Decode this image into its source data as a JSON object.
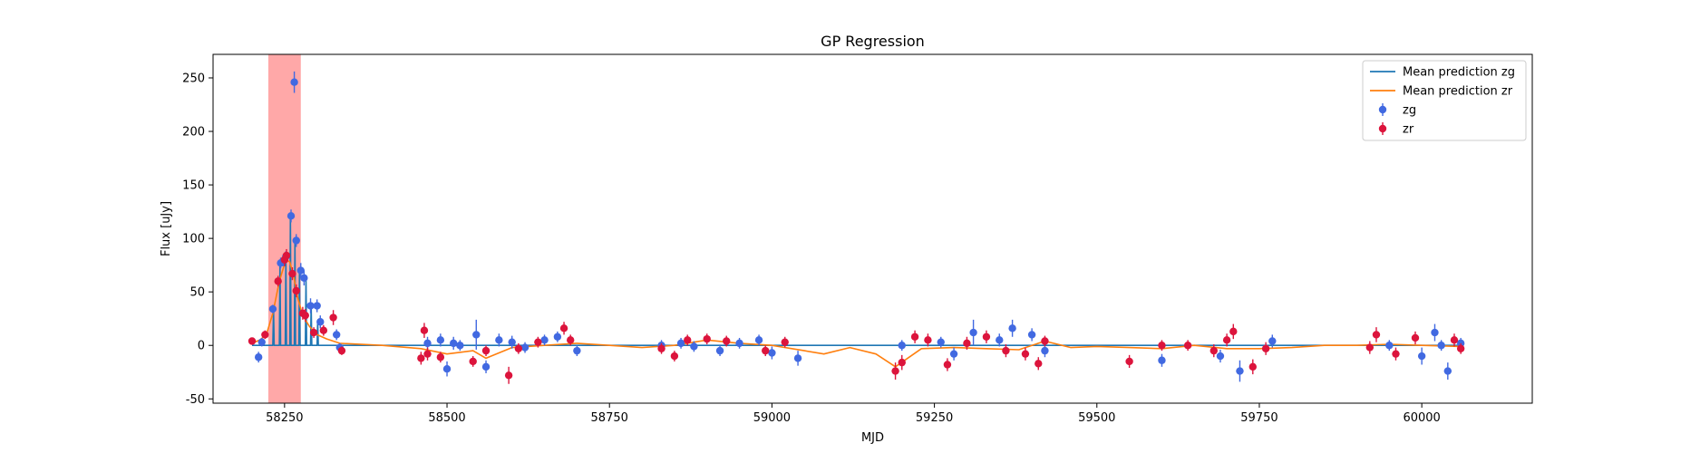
{
  "chart_data": {
    "type": "scatter",
    "title": "GP Regression",
    "xlabel": "MJD",
    "ylabel": "Flux [uJy]",
    "xlim": [
      58140,
      60170
    ],
    "ylim": [
      -54,
      272
    ],
    "x_ticks": [
      58250,
      58500,
      58750,
      59000,
      59250,
      59500,
      59750,
      60000
    ],
    "y_ticks": [
      -50,
      0,
      50,
      100,
      150,
      200,
      250
    ],
    "grid": false,
    "legend": {
      "position": "top-right",
      "entries": [
        "Mean prediction zg",
        "Mean prediction zr",
        "zg",
        "zr"
      ]
    },
    "highlight_band": {
      "x_start": 58225,
      "x_end": 58275,
      "color": "#ff9999"
    },
    "colors": {
      "mean_zg": "#1f77b4",
      "mean_zr": "#ff7f0e",
      "zg": "#4169e1",
      "zr": "#dc143c"
    },
    "series": [
      {
        "name": "Mean prediction zg",
        "kind": "line",
        "x": [
          58200,
          58232,
          58233,
          58234,
          58242,
          58243,
          58244,
          58251,
          58252,
          58253,
          58258,
          58259,
          58260,
          58265,
          58266,
          58267,
          58272,
          58273,
          58274,
          58282,
          58283,
          58284,
          58290,
          58291,
          58292,
          58300,
          58301,
          58302,
          58330,
          59000,
          60060
        ],
        "y": [
          0,
          0,
          34,
          0,
          0,
          77,
          0,
          0,
          83,
          0,
          0,
          121,
          0,
          0,
          98,
          0,
          0,
          70,
          0,
          0,
          63,
          0,
          0,
          37,
          0,
          0,
          22,
          0,
          0,
          0,
          0
        ]
      },
      {
        "name": "Mean prediction zr",
        "kind": "line",
        "x": [
          58200,
          58212,
          58222,
          58232,
          58242,
          58252,
          58258,
          58264,
          58270,
          58278,
          58288,
          58300,
          58315,
          58335,
          58400,
          58460,
          58500,
          58540,
          58560,
          58600,
          58650,
          58700,
          58750,
          58800,
          58850,
          58900,
          58950,
          59000,
          59050,
          59080,
          59120,
          59160,
          59190,
          59230,
          59280,
          59330,
          59380,
          59420,
          59460,
          59500,
          59550,
          59600,
          59650,
          59700,
          59750,
          59800,
          59850,
          59900,
          59950,
          60000,
          60060
        ],
        "y": [
          2,
          5,
          10,
          30,
          60,
          80,
          78,
          65,
          45,
          28,
          18,
          10,
          6,
          2,
          0,
          -3,
          -8,
          -5,
          -12,
          -2,
          0,
          2,
          0,
          -2,
          0,
          5,
          2,
          0,
          -5,
          -8,
          -2,
          -8,
          -20,
          -3,
          -2,
          -3,
          -4,
          4,
          -2,
          -1,
          -2,
          -3,
          0,
          -3,
          -3,
          -2,
          0,
          0,
          1,
          0,
          -1
        ]
      },
      {
        "name": "zg",
        "kind": "errorbar",
        "points": [
          [
            58210,
            -11,
            5
          ],
          [
            58215,
            3,
            4
          ],
          [
            58232,
            34,
            4
          ],
          [
            58244,
            77,
            5
          ],
          [
            58248,
            79,
            5
          ],
          [
            58252,
            83,
            5
          ],
          [
            58260,
            121,
            6
          ],
          [
            58265,
            246,
            10
          ],
          [
            58268,
            98,
            6
          ],
          [
            58275,
            70,
            7
          ],
          [
            58280,
            63,
            7
          ],
          [
            58290,
            37,
            7
          ],
          [
            58300,
            37,
            6
          ],
          [
            58305,
            22,
            6
          ],
          [
            58330,
            10,
            5
          ],
          [
            58335,
            -2,
            4
          ],
          [
            58470,
            2,
            6
          ],
          [
            58490,
            5,
            6
          ],
          [
            58500,
            -22,
            7
          ],
          [
            58510,
            2,
            6
          ],
          [
            58520,
            0,
            5
          ],
          [
            58545,
            10,
            14
          ],
          [
            58560,
            -20,
            6
          ],
          [
            58580,
            5,
            6
          ],
          [
            58600,
            3,
            6
          ],
          [
            58620,
            -2,
            5
          ],
          [
            58650,
            5,
            5
          ],
          [
            58670,
            8,
            5
          ],
          [
            58700,
            -5,
            5
          ],
          [
            58830,
            0,
            5
          ],
          [
            58860,
            2,
            5
          ],
          [
            58880,
            -1,
            5
          ],
          [
            58920,
            -5,
            5
          ],
          [
            58950,
            2,
            5
          ],
          [
            58980,
            5,
            5
          ],
          [
            59000,
            -7,
            6
          ],
          [
            59040,
            -12,
            7
          ],
          [
            59200,
            0,
            5
          ],
          [
            59260,
            3,
            5
          ],
          [
            59280,
            -8,
            6
          ],
          [
            59310,
            12,
            12
          ],
          [
            59350,
            5,
            6
          ],
          [
            59370,
            16,
            8
          ],
          [
            59400,
            10,
            6
          ],
          [
            59420,
            -5,
            6
          ],
          [
            59600,
            -14,
            6
          ],
          [
            59690,
            -10,
            6
          ],
          [
            59720,
            -24,
            10
          ],
          [
            59770,
            4,
            6
          ],
          [
            59950,
            0,
            5
          ],
          [
            60000,
            -10,
            8
          ],
          [
            60020,
            12,
            8
          ],
          [
            60030,
            0,
            5
          ],
          [
            60040,
            -24,
            8
          ],
          [
            60060,
            2,
            5
          ]
        ]
      },
      {
        "name": "zr",
        "kind": "errorbar",
        "points": [
          [
            58200,
            4,
            3
          ],
          [
            58220,
            10,
            4
          ],
          [
            58240,
            60,
            5
          ],
          [
            58250,
            80,
            6
          ],
          [
            58253,
            84,
            6
          ],
          [
            58262,
            67,
            6
          ],
          [
            58268,
            51,
            6
          ],
          [
            58278,
            30,
            6
          ],
          [
            58282,
            28,
            6
          ],
          [
            58295,
            12,
            5
          ],
          [
            58310,
            14,
            5
          ],
          [
            58325,
            26,
            7
          ],
          [
            58338,
            -5,
            4
          ],
          [
            58460,
            -12,
            6
          ],
          [
            58465,
            14,
            7
          ],
          [
            58470,
            -8,
            6
          ],
          [
            58490,
            -11,
            5
          ],
          [
            58540,
            -15,
            5
          ],
          [
            58560,
            -5,
            5
          ],
          [
            58595,
            -28,
            8
          ],
          [
            58610,
            -3,
            5
          ],
          [
            58640,
            3,
            5
          ],
          [
            58680,
            16,
            6
          ],
          [
            58690,
            5,
            5
          ],
          [
            58830,
            -3,
            5
          ],
          [
            58850,
            -10,
            5
          ],
          [
            58870,
            5,
            5
          ],
          [
            58900,
            6,
            5
          ],
          [
            58930,
            4,
            5
          ],
          [
            58990,
            -5,
            5
          ],
          [
            59020,
            3,
            5
          ],
          [
            59190,
            -24,
            8
          ],
          [
            59200,
            -16,
            7
          ],
          [
            59220,
            8,
            6
          ],
          [
            59240,
            5,
            6
          ],
          [
            59270,
            -18,
            6
          ],
          [
            59300,
            2,
            6
          ],
          [
            59330,
            8,
            6
          ],
          [
            59360,
            -5,
            6
          ],
          [
            59390,
            -8,
            6
          ],
          [
            59410,
            -17,
            6
          ],
          [
            59420,
            4,
            5
          ],
          [
            59550,
            -15,
            6
          ],
          [
            59600,
            0,
            5
          ],
          [
            59640,
            0,
            5
          ],
          [
            59680,
            -5,
            6
          ],
          [
            59700,
            5,
            6
          ],
          [
            59710,
            13,
            7
          ],
          [
            59740,
            -20,
            7
          ],
          [
            59760,
            -3,
            6
          ],
          [
            59920,
            -2,
            6
          ],
          [
            59930,
            10,
            7
          ],
          [
            59960,
            -8,
            6
          ],
          [
            59990,
            7,
            6
          ],
          [
            60050,
            5,
            6
          ],
          [
            60060,
            -3,
            5
          ]
        ]
      }
    ]
  }
}
